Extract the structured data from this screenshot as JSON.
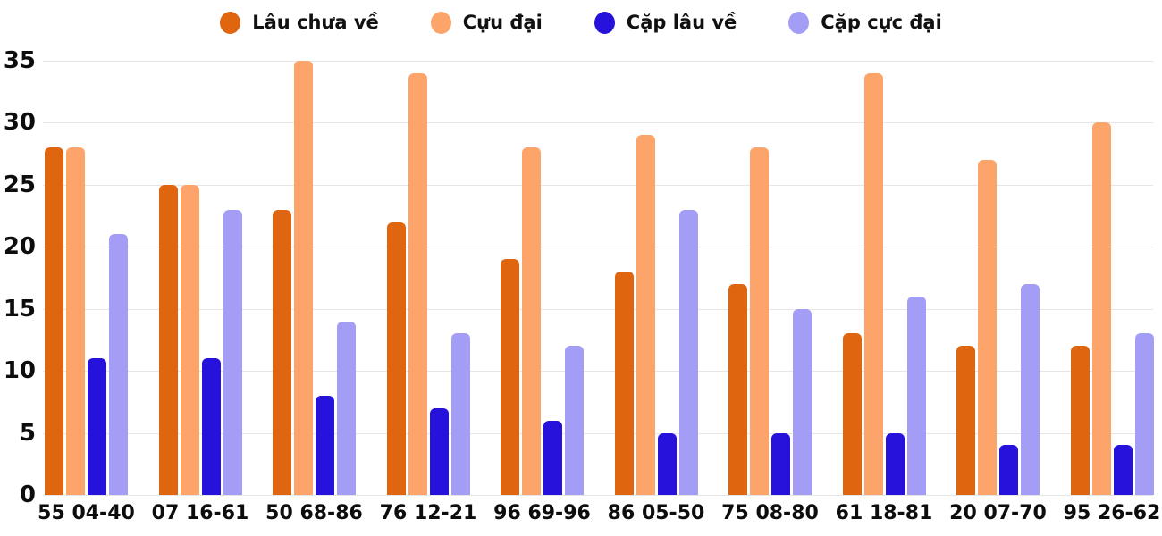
{
  "chart_data": {
    "type": "bar",
    "title": "",
    "xlabel": "",
    "ylabel": "",
    "categories": [
      "55 04-40",
      "07 16-61",
      "50 68-86",
      "76 12-21",
      "96 69-96",
      "86 05-50",
      "75 08-80",
      "61 18-81",
      "20 07-70",
      "95 26-62"
    ],
    "series": [
      {
        "name": "Lâu chưa về",
        "color": "#e0650f",
        "values": [
          28,
          25,
          23,
          22,
          19,
          18,
          17,
          13,
          12,
          12
        ]
      },
      {
        "name": "Cựu đại",
        "color": "#fda46b",
        "values": [
          28,
          25,
          35,
          34,
          28,
          29,
          28,
          34,
          27,
          30
        ]
      },
      {
        "name": "Cặp lâu về",
        "color": "#2712db",
        "values": [
          11,
          11,
          8,
          7,
          6,
          5,
          5,
          5,
          4,
          4
        ]
      },
      {
        "name": "Cặp cực đại",
        "color": "#a49df6",
        "values": [
          21,
          23,
          14,
          13,
          12,
          23,
          15,
          16,
          17,
          13
        ]
      }
    ],
    "y_ticks": [
      0,
      5,
      10,
      15,
      20,
      25,
      30,
      35
    ],
    "ylim": [
      0,
      35
    ],
    "grid": true,
    "legend_position": "top",
    "colors": {
      "background": "#ffffff",
      "gridline": "#e6e6e6",
      "text": "#0d0d0d"
    }
  }
}
